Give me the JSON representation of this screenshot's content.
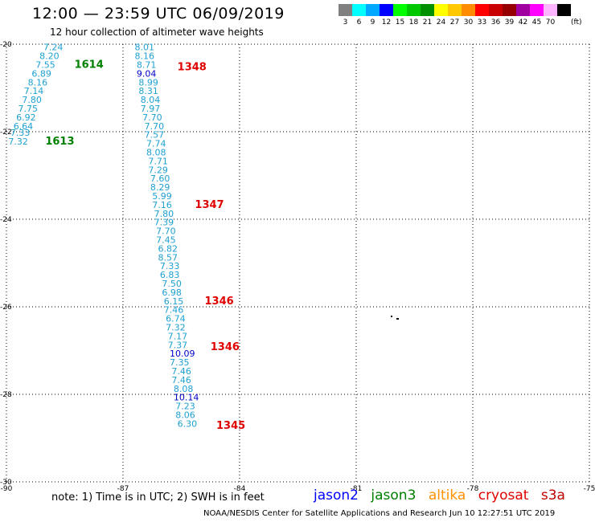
{
  "title": "12:00 — 23:59 UTC 06/09/2019",
  "subtitle": "12 hour collection of altimeter wave heights",
  "legend": {
    "unit": "(ft)",
    "bins": [
      {
        "label": "3",
        "color": "#808080"
      },
      {
        "label": "6",
        "color": "#00ffff"
      },
      {
        "label": "9",
        "color": "#00a8ff"
      },
      {
        "label": "12",
        "color": "#0000ff"
      },
      {
        "label": "15",
        "color": "#00ff00"
      },
      {
        "label": "18",
        "color": "#00c800"
      },
      {
        "label": "21",
        "color": "#009000"
      },
      {
        "label": "24",
        "color": "#ffff00"
      },
      {
        "label": "27",
        "color": "#ffc800"
      },
      {
        "label": "30",
        "color": "#ff8c00"
      },
      {
        "label": "33",
        "color": "#ff0000"
      },
      {
        "label": "36",
        "color": "#c80000"
      },
      {
        "label": "39",
        "color": "#960000"
      },
      {
        "label": "42",
        "color": "#a000a0"
      },
      {
        "label": "45",
        "color": "#ff00ff"
      },
      {
        "label": "70",
        "color": "#ffb4ff"
      },
      {
        "label": "",
        "color": "#000000"
      }
    ]
  },
  "axes": {
    "lon_ticks": [
      "-90",
      "-87",
      "-84",
      "-81",
      "-78",
      "-75"
    ],
    "lat_ticks": [
      "-20",
      "-22",
      "-24",
      "-26",
      "-28",
      "-30"
    ],
    "lon_range": [
      -90,
      -75
    ],
    "lat_range": [
      -20,
      -30
    ],
    "grid": "dotted"
  },
  "colors": {
    "swh_cyan": "#1ea0d2",
    "swh_blue": "#0000c8",
    "pass_green": "#008000",
    "pass_red": "#e00000",
    "jason2": "#0000ff",
    "jason3": "#008000",
    "altika": "#ff9000",
    "cryosat": "#e00000",
    "s3a": "#c00000"
  },
  "map_data": {
    "track_west": [
      {
        "lon": -89.05,
        "lat": -20.05,
        "v": "7.24"
      },
      {
        "lon": -89.15,
        "lat": -20.25,
        "v": "8.20"
      },
      {
        "lon": -89.25,
        "lat": -20.45,
        "v": "7.55"
      },
      {
        "lon": -89.35,
        "lat": -20.65,
        "v": "6.89"
      },
      {
        "lon": -89.45,
        "lat": -20.85,
        "v": "8.16"
      },
      {
        "lon": -89.55,
        "lat": -21.05,
        "v": "7.14"
      },
      {
        "lon": -89.6,
        "lat": -21.25,
        "v": "7.80"
      },
      {
        "lon": -89.7,
        "lat": -21.45,
        "v": "7.75"
      },
      {
        "lon": -89.75,
        "lat": -21.65,
        "v": "6.92"
      },
      {
        "lon": -89.82,
        "lat": -21.85,
        "v": "6.64"
      },
      {
        "lon": -89.9,
        "lat": -22.0,
        "v": "7.33"
      },
      {
        "lon": -89.95,
        "lat": -22.2,
        "v": "7.32"
      }
    ],
    "track_east": [
      {
        "lon": -86.7,
        "lat": -20.05,
        "v": "8.01",
        "c": "cyan"
      },
      {
        "lon": -86.7,
        "lat": -20.25,
        "v": "8.16",
        "c": "cyan"
      },
      {
        "lon": -86.65,
        "lat": -20.45,
        "v": "8.71",
        "c": "cyan"
      },
      {
        "lon": -86.65,
        "lat": -20.65,
        "v": "9.04",
        "c": "blue"
      },
      {
        "lon": -86.6,
        "lat": -20.85,
        "v": "8.99",
        "c": "cyan"
      },
      {
        "lon": -86.6,
        "lat": -21.05,
        "v": "8.31",
        "c": "cyan"
      },
      {
        "lon": -86.55,
        "lat": -21.25,
        "v": "8.04",
        "c": "cyan"
      },
      {
        "lon": -86.55,
        "lat": -21.45,
        "v": "7.97",
        "c": "cyan"
      },
      {
        "lon": -86.5,
        "lat": -21.65,
        "v": "7.70",
        "c": "cyan"
      },
      {
        "lon": -86.45,
        "lat": -21.85,
        "v": "7.70",
        "c": "cyan"
      },
      {
        "lon": -86.45,
        "lat": -22.05,
        "v": "7.57",
        "c": "cyan"
      },
      {
        "lon": -86.4,
        "lat": -22.25,
        "v": "7.74",
        "c": "cyan"
      },
      {
        "lon": -86.4,
        "lat": -22.45,
        "v": "8.08",
        "c": "cyan"
      },
      {
        "lon": -86.35,
        "lat": -22.65,
        "v": "7.71",
        "c": "cyan"
      },
      {
        "lon": -86.35,
        "lat": -22.85,
        "v": "7.29",
        "c": "cyan"
      },
      {
        "lon": -86.3,
        "lat": -23.05,
        "v": "7.60",
        "c": "cyan"
      },
      {
        "lon": -86.3,
        "lat": -23.25,
        "v": "8.29",
        "c": "cyan"
      },
      {
        "lon": -86.25,
        "lat": -23.45,
        "v": "5.99",
        "c": "cyan"
      },
      {
        "lon": -86.25,
        "lat": -23.65,
        "v": "7.16",
        "c": "cyan"
      },
      {
        "lon": -86.2,
        "lat": -23.85,
        "v": "7.80",
        "c": "cyan"
      },
      {
        "lon": -86.2,
        "lat": -24.05,
        "v": "7.39",
        "c": "cyan"
      },
      {
        "lon": -86.15,
        "lat": -24.25,
        "v": "7.70",
        "c": "cyan"
      },
      {
        "lon": -86.15,
        "lat": -24.45,
        "v": "7.45",
        "c": "cyan"
      },
      {
        "lon": -86.1,
        "lat": -24.65,
        "v": "6.82",
        "c": "cyan"
      },
      {
        "lon": -86.1,
        "lat": -24.85,
        "v": "8.57",
        "c": "cyan"
      },
      {
        "lon": -86.05,
        "lat": -25.05,
        "v": "7.33",
        "c": "cyan"
      },
      {
        "lon": -86.05,
        "lat": -25.25,
        "v": "6.83",
        "c": "cyan"
      },
      {
        "lon": -86.0,
        "lat": -25.45,
        "v": "7.50",
        "c": "cyan"
      },
      {
        "lon": -86.0,
        "lat": -25.65,
        "v": "6.98",
        "c": "cyan"
      },
      {
        "lon": -85.95,
        "lat": -25.85,
        "v": "6.15",
        "c": "cyan"
      },
      {
        "lon": -85.95,
        "lat": -26.05,
        "v": "7.46",
        "c": "cyan"
      },
      {
        "lon": -85.9,
        "lat": -26.25,
        "v": "6.74",
        "c": "cyan"
      },
      {
        "lon": -85.9,
        "lat": -26.45,
        "v": "7.32",
        "c": "cyan"
      },
      {
        "lon": -85.85,
        "lat": -26.65,
        "v": "7.17",
        "c": "cyan"
      },
      {
        "lon": -85.85,
        "lat": -26.85,
        "v": "7.37",
        "c": "cyan"
      },
      {
        "lon": -85.8,
        "lat": -27.05,
        "v": "10.09",
        "c": "blue"
      },
      {
        "lon": -85.8,
        "lat": -27.25,
        "v": "7.35",
        "c": "cyan"
      },
      {
        "lon": -85.75,
        "lat": -27.45,
        "v": "7.46",
        "c": "cyan"
      },
      {
        "lon": -85.75,
        "lat": -27.65,
        "v": "7.46",
        "c": "cyan"
      },
      {
        "lon": -85.7,
        "lat": -27.85,
        "v": "8.08",
        "c": "cyan"
      },
      {
        "lon": -85.7,
        "lat": -28.05,
        "v": "10.14",
        "c": "blue"
      },
      {
        "lon": -85.65,
        "lat": -28.25,
        "v": "7.23",
        "c": "cyan"
      },
      {
        "lon": -85.65,
        "lat": -28.45,
        "v": "8.06",
        "c": "cyan"
      },
      {
        "lon": -85.6,
        "lat": -28.65,
        "v": "6.30",
        "c": "cyan"
      }
    ],
    "pass_labels": [
      {
        "lon": -88.25,
        "lat": -20.45,
        "text": "1614",
        "c": "green"
      },
      {
        "lon": -89.0,
        "lat": -22.2,
        "text": "1613",
        "c": "green"
      },
      {
        "lon": -85.6,
        "lat": -20.5,
        "text": "1348",
        "c": "red"
      },
      {
        "lon": -85.15,
        "lat": -23.65,
        "text": "1347",
        "c": "red"
      },
      {
        "lon": -84.9,
        "lat": -25.85,
        "text": "1346",
        "c": "red"
      },
      {
        "lon": -84.75,
        "lat": -26.9,
        "text": "1346",
        "c": "red"
      },
      {
        "lon": -84.6,
        "lat": -28.7,
        "text": "1345",
        "c": "red"
      }
    ]
  },
  "footer": {
    "note": "note:  1) Time is in UTC;  2) SWH is in feet",
    "sats": [
      "jason2",
      "jason3",
      "altika",
      "cryosat",
      "s3a"
    ],
    "credit": "NOAA/NESDIS Center for Satellite Applications and Research    Jun 10 12:27:51 UTC 2019"
  }
}
